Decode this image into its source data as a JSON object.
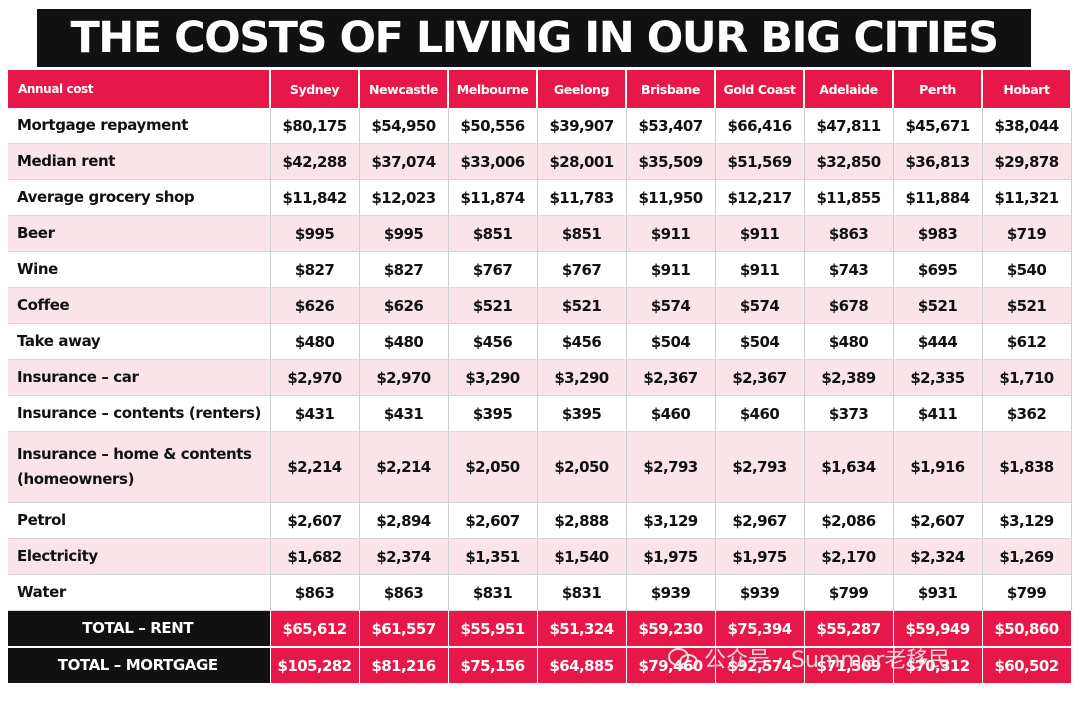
{
  "title": "THE COSTS OF LIVING IN OUR BIG CITIES",
  "header": [
    "Annual cost",
    "Sydney",
    "Newcastle",
    "Melbourne",
    "Geelong",
    "Brisbane",
    "Gold Coast",
    "Adelaide",
    "Perth",
    "Hobart"
  ],
  "rows": [
    {
      "label": "Mortgage repayment",
      "values": [
        "$80,175",
        "$54,950",
        "$50,556",
        "$39,907",
        "$53,407",
        "$66,416",
        "$47,811",
        "$45,671",
        "$38,044"
      ]
    },
    {
      "label": "Median rent",
      "values": [
        "$42,288",
        "$37,074",
        "$33,006",
        "$28,001",
        "$35,509",
        "$51,569",
        "$32,850",
        "$36,813",
        "$29,878"
      ]
    },
    {
      "label": "Average grocery shop",
      "values": [
        "$11,842",
        "$12,023",
        "$11,874",
        "$11,783",
        "$11,950",
        "$12,217",
        "$11,855",
        "$11,884",
        "$11,321"
      ]
    },
    {
      "label": "Beer",
      "values": [
        "$995",
        "$995",
        "$851",
        "$851",
        "$911",
        "$911",
        "$863",
        "$983",
        "$719"
      ]
    },
    {
      "label": "Wine",
      "values": [
        "$827",
        "$827",
        "$767",
        "$767",
        "$911",
        "$911",
        "$743",
        "$695",
        "$540"
      ]
    },
    {
      "label": "Coffee",
      "values": [
        "$626",
        "$626",
        "$521",
        "$521",
        "$574",
        "$574",
        "$678",
        "$521",
        "$521"
      ]
    },
    {
      "label": "Take away",
      "values": [
        "$480",
        "$480",
        "$456",
        "$456",
        "$504",
        "$504",
        "$480",
        "$444",
        "$612"
      ]
    },
    {
      "label": "Insurance – car",
      "values": [
        "$2,970",
        "$2,970",
        "$3,290",
        "$3,290",
        "$2,367",
        "$2,367",
        "$2,389",
        "$2,335",
        "$1,710"
      ]
    },
    {
      "label": "Insurance – contents (renters)",
      "values": [
        "$431",
        "$431",
        "$395",
        "$395",
        "$460",
        "$460",
        "$373",
        "$411",
        "$362"
      ]
    },
    {
      "label": "Insurance – home & contents (homeowners)",
      "values": [
        "$2,214",
        "$2,214",
        "$2,050",
        "$2,050",
        "$2,793",
        "$2,793",
        "$1,634",
        "$1,916",
        "$1,838"
      ]
    },
    {
      "label": "Petrol",
      "values": [
        "$2,607",
        "$2,894",
        "$2,607",
        "$2,888",
        "$3,129",
        "$2,967",
        "$2,086",
        "$2,607",
        "$3,129"
      ]
    },
    {
      "label": "Electricity",
      "values": [
        "$1,682",
        "$2,374",
        "$1,351",
        "$1,540",
        "$1,975",
        "$1,975",
        "$2,170",
        "$2,324",
        "$1,269"
      ]
    },
    {
      "label": "Water",
      "values": [
        "$863",
        "$863",
        "$831",
        "$831",
        "$939",
        "$939",
        "$799",
        "$931",
        "$799"
      ]
    }
  ],
  "totals": [
    {
      "label": "TOTAL – RENT",
      "values": [
        "$65,612",
        "$61,557",
        "$55,951",
        "$51,324",
        "$59,230",
        "$75,394",
        "$55,287",
        "$59,949",
        "$50,860"
      ]
    },
    {
      "label": "TOTAL – MORTGAGE",
      "values": [
        "$105,282",
        "$81,216",
        "$75,156",
        "$64,885",
        "$79,460",
        "$92,574",
        "$71,509",
        "$70,312",
        "$60,502"
      ]
    }
  ],
  "watermark": {
    "text": "公众号 · Summer老移民",
    "icon": "wechat-icon"
  }
}
